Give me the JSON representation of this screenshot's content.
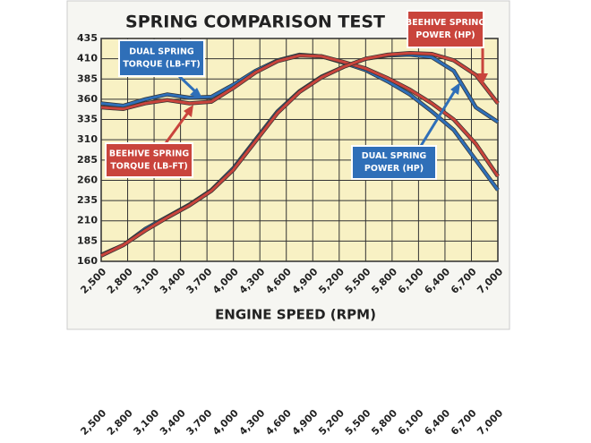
{
  "chart_data": {
    "type": "line",
    "title": "SPRING COMPARISON TEST",
    "x_label": "ENGINE SPEED (RPM)",
    "x": [
      2500,
      2750,
      3000,
      3250,
      3500,
      3750,
      4000,
      4250,
      4500,
      4750,
      5000,
      5250,
      5500,
      5750,
      6000,
      6250,
      6500,
      6750,
      7000
    ],
    "series": [
      {
        "name": "DUAL SPRING TORQUE (LB-FT)",
        "color": "#2f6fb8",
        "values": [
          355,
          352,
          360,
          366,
          362,
          363,
          378,
          395,
          408,
          415,
          413,
          405,
          396,
          382,
          366,
          345,
          322,
          285,
          248
        ]
      },
      {
        "name": "BEEHIVE SPRING TORQUE (LB-FT)",
        "color": "#c9443c",
        "values": [
          350,
          348,
          355,
          359,
          355,
          357,
          374,
          393,
          407,
          414,
          413,
          406,
          398,
          386,
          372,
          355,
          335,
          305,
          265
        ]
      },
      {
        "name": "DUAL SPRING POWER (HP)",
        "color": "#2f6fb8",
        "values": [
          168,
          180,
          200,
          215,
          230,
          248,
          275,
          310,
          345,
          370,
          388,
          400,
          410,
          414,
          415,
          412,
          395,
          350,
          332
        ]
      },
      {
        "name": "BEEHIVE SPRING POWER (HP)",
        "color": "#c9443c",
        "values": [
          167,
          180,
          198,
          214,
          229,
          247,
          273,
          308,
          343,
          369,
          387,
          400,
          410,
          415,
          417,
          416,
          408,
          390,
          355
        ]
      }
    ],
    "annotations": [
      {
        "lines": [
          "DUAL SPRING",
          "TORQUE (LB-FT)"
        ],
        "color": "#2f6fb8"
      },
      {
        "lines": [
          "BEEHIVE SPRING",
          "TORQUE (LB-FT)"
        ],
        "color": "#c9443c"
      },
      {
        "lines": [
          "DUAL SPRING",
          "POWER (HP)"
        ],
        "color": "#2f6fb8"
      },
      {
        "lines": [
          "BEEHIVE SPRING",
          "POWER (HP)"
        ],
        "color": "#c9443c"
      }
    ],
    "xlim": [
      2500,
      7000
    ],
    "xticks": [
      {
        "value": 2500,
        "label": "2,500"
      },
      {
        "value": 2800,
        "label": "2,800"
      },
      {
        "value": 3100,
        "label": "3,100"
      },
      {
        "value": 3400,
        "label": "3,400"
      },
      {
        "value": 3700,
        "label": "3,700"
      },
      {
        "value": 4000,
        "label": "4,000"
      },
      {
        "value": 4300,
        "label": "4,300"
      },
      {
        "value": 4600,
        "label": "4,600"
      },
      {
        "value": 4900,
        "label": "4,900"
      },
      {
        "value": 5200,
        "label": "5,200"
      },
      {
        "value": 5500,
        "label": "5,500"
      },
      {
        "value": 5800,
        "label": "5,800"
      },
      {
        "value": 6100,
        "label": "6,100"
      },
      {
        "value": 6400,
        "label": "6,400"
      },
      {
        "value": 6700,
        "label": "6,700"
      },
      {
        "value": 7000,
        "label": "7,000"
      }
    ],
    "ylim": [
      160,
      435
    ],
    "yticks": [
      160,
      185,
      210,
      235,
      260,
      285,
      310,
      335,
      360,
      385,
      410,
      435
    ],
    "grid": true
  }
}
